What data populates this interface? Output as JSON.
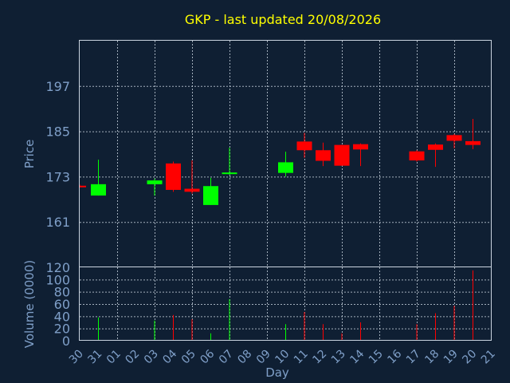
{
  "chart_data": {
    "type": "candlestick",
    "title": "GKP - last updated 20/08/2026",
    "xlabel": "Day",
    "price_axis": {
      "ylabel": "Price",
      "ylim": [
        149,
        209
      ],
      "ticks": [
        197,
        185,
        173,
        161
      ]
    },
    "volume_axis": {
      "ylabel": "Volume (0000)",
      "ylim": [
        0,
        120
      ],
      "ticks": [
        120,
        100,
        80,
        60,
        40,
        20,
        0
      ],
      "tick_labels": [
        "120",
        "100",
        "80",
        "60",
        "40",
        "20",
        "0"
      ]
    },
    "categories": [
      "30",
      "31",
      "01",
      "02",
      "03",
      "04",
      "05",
      "06",
      "07",
      "08",
      "09",
      "10",
      "11",
      "12",
      "13",
      "14",
      "15",
      "16",
      "17",
      "18",
      "19",
      "20",
      "21"
    ],
    "colors": {
      "up": "#00ff00",
      "down": "#ff0000",
      "background": "#0f1f33",
      "text": "#7f9fc8",
      "title": "#ffff00"
    },
    "candles": [
      {
        "day": "30",
        "open": 170.6,
        "high": 170.9,
        "low": 170.1,
        "close": 170.3,
        "volume": 0
      },
      {
        "day": "31",
        "open": 168.0,
        "high": 177.5,
        "low": 168.0,
        "close": 171.0,
        "volume": 38
      },
      {
        "day": "03",
        "open": 171.0,
        "high": 172.5,
        "low": 168.0,
        "close": 172.0,
        "volume": 33
      },
      {
        "day": "04",
        "open": 176.5,
        "high": 177.0,
        "low": 169.0,
        "close": 169.5,
        "volume": 42
      },
      {
        "day": "05",
        "open": 169.8,
        "high": 177.3,
        "low": 168.5,
        "close": 169.0,
        "volume": 35
      },
      {
        "day": "06",
        "open": 165.5,
        "high": 172.7,
        "low": 165.5,
        "close": 170.5,
        "volume": 12
      },
      {
        "day": "07",
        "open": 173.8,
        "high": 180.7,
        "low": 173.5,
        "close": 174.1,
        "volume": 68
      },
      {
        "day": "10",
        "open": 174.0,
        "high": 179.6,
        "low": 173.0,
        "close": 176.8,
        "volume": 27
      },
      {
        "day": "11",
        "open": 182.3,
        "high": 184.6,
        "low": 178.0,
        "close": 180.0,
        "volume": 47
      },
      {
        "day": "12",
        "open": 180.0,
        "high": 182.0,
        "low": 175.8,
        "close": 177.2,
        "volume": 27
      },
      {
        "day": "13",
        "open": 181.4,
        "high": 181.4,
        "low": 175.9,
        "close": 175.9,
        "volume": 12
      },
      {
        "day": "14",
        "open": 181.6,
        "high": 181.8,
        "low": 175.8,
        "close": 180.2,
        "volume": 30
      },
      {
        "day": "17",
        "open": 179.7,
        "high": 180.0,
        "low": 177.0,
        "close": 177.3,
        "volume": 27
      },
      {
        "day": "18",
        "open": 181.5,
        "high": 181.8,
        "low": 175.6,
        "close": 180.1,
        "volume": 45
      },
      {
        "day": "19",
        "open": 184.0,
        "high": 184.3,
        "low": 180.5,
        "close": 182.5,
        "volume": 57
      },
      {
        "day": "20",
        "open": 182.4,
        "high": 188.3,
        "low": 180.3,
        "close": 181.4,
        "volume": 115
      }
    ]
  }
}
